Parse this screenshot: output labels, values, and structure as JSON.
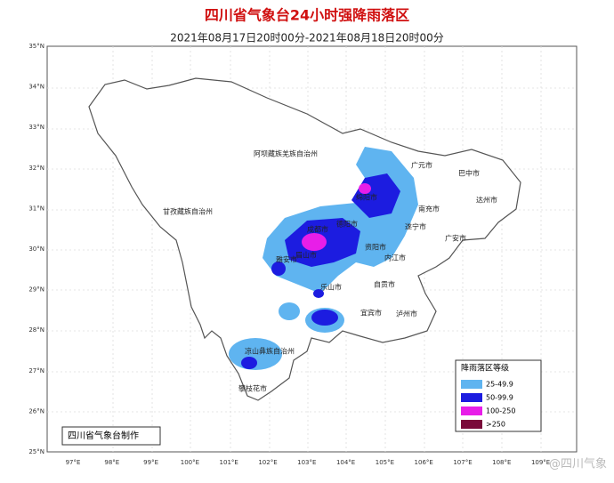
{
  "map": {
    "title": "四川省气象台24小时强降雨落区",
    "subtitle": "2021年08月17日20时00分-2021年08月18日20时00分",
    "lat_labels": [
      "35°N",
      "34°N",
      "33°N",
      "32°N",
      "31°N",
      "30°N",
      "29°N",
      "28°N",
      "27°N",
      "26°N",
      "25°N"
    ],
    "lon_labels": [
      "97°E",
      "98°E",
      "99°E",
      "100°E",
      "101°E",
      "102°E",
      "103°E",
      "104°E",
      "105°E",
      "106°E",
      "107°E",
      "108°E",
      "109°E"
    ],
    "places": [
      "阿坝藏族羌族自治州",
      "甘孜藏族自治州",
      "凉山彝族自治州",
      "攀枝花市",
      "雅安市",
      "眉山市",
      "乐山市",
      "宜宾市",
      "泸州市",
      "自贡市",
      "内江市",
      "资阳市",
      "遂宁市",
      "广安市",
      "南充市",
      "达州市",
      "巴中市",
      "广元市",
      "绵阳市",
      "德阳市",
      "成都市"
    ],
    "legend": {
      "title": "降雨落区等级",
      "items": [
        {
          "label": "25-49.9",
          "color": "#5fb4f0"
        },
        {
          "label": "50-99.9",
          "color": "#1c1ce0"
        },
        {
          "label": "100-250",
          "color": "#e81ee8"
        },
        {
          "label": ">250",
          "color": "#7a0a3a"
        }
      ]
    },
    "credit": "四川省气象台制作",
    "watermark": "@四川气象"
  }
}
